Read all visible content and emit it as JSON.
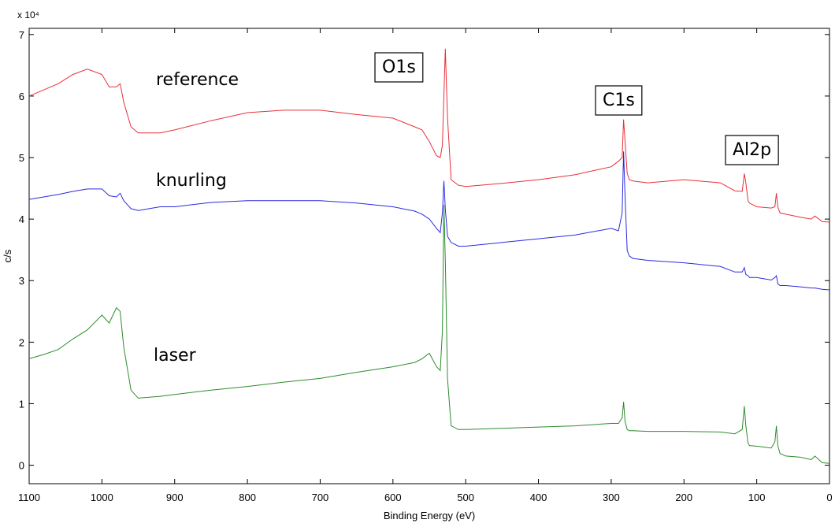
{
  "chart_data": {
    "type": "line",
    "x_label": "Binding Energy (eV)",
    "y_label": "c/s",
    "y_multiplier": "x 10⁴",
    "annotations": [
      "O1s",
      "C1s",
      "Al2p"
    ],
    "xlim": [
      1100,
      0
    ],
    "xticks": [
      1100,
      1000,
      900,
      800,
      700,
      600,
      500,
      400,
      300,
      200,
      100,
      0
    ],
    "ylim": [
      -0.3,
      7.1
    ],
    "yticks": [
      0,
      1,
      2,
      3,
      4,
      5,
      6,
      7
    ],
    "grid": false,
    "x": [
      1100,
      1080,
      1060,
      1040,
      1020,
      1000,
      990,
      980,
      975,
      970,
      960,
      950,
      920,
      900,
      850,
      800,
      750,
      700,
      650,
      600,
      570,
      560,
      550,
      540,
      535,
      532,
      530,
      528,
      525,
      520,
      510,
      500,
      450,
      400,
      350,
      300,
      290,
      285,
      283,
      281,
      278,
      275,
      270,
      250,
      200,
      150,
      130,
      120,
      117,
      115,
      112,
      110,
      100,
      80,
      75,
      73,
      71,
      68,
      60,
      40,
      25,
      20,
      10,
      0
    ],
    "series": [
      {
        "name": "reference",
        "color": "#e8303a",
        "values": [
          6.0,
          6.1,
          6.2,
          6.35,
          6.44,
          6.35,
          6.15,
          6.15,
          6.2,
          5.9,
          5.5,
          5.4,
          5.4,
          5.45,
          5.6,
          5.73,
          5.77,
          5.77,
          5.7,
          5.64,
          5.5,
          5.45,
          5.26,
          5.03,
          5.0,
          5.2,
          6.0,
          6.77,
          5.65,
          4.64,
          4.55,
          4.53,
          4.58,
          4.64,
          4.72,
          4.85,
          4.94,
          5.0,
          5.62,
          5.26,
          4.74,
          4.64,
          4.62,
          4.59,
          4.64,
          4.59,
          4.46,
          4.45,
          4.74,
          4.59,
          4.3,
          4.26,
          4.2,
          4.18,
          4.2,
          4.42,
          4.2,
          4.1,
          4.08,
          4.03,
          4.0,
          4.05,
          3.96,
          3.95
        ]
      },
      {
        "name": "knurling",
        "color": "#2a2ae0",
        "values": [
          4.32,
          4.36,
          4.4,
          4.45,
          4.49,
          4.49,
          4.38,
          4.36,
          4.42,
          4.3,
          4.17,
          4.14,
          4.2,
          4.2,
          4.27,
          4.3,
          4.3,
          4.3,
          4.26,
          4.2,
          4.13,
          4.08,
          4.0,
          3.85,
          3.78,
          4.1,
          4.62,
          4.17,
          3.72,
          3.62,
          3.56,
          3.56,
          3.62,
          3.68,
          3.74,
          3.85,
          3.81,
          4.1,
          5.1,
          4.36,
          3.49,
          3.4,
          3.36,
          3.33,
          3.29,
          3.23,
          3.14,
          3.14,
          3.21,
          3.1,
          3.08,
          3.05,
          3.05,
          3.01,
          3.05,
          3.08,
          2.95,
          2.92,
          2.92,
          2.9,
          2.88,
          2.88,
          2.86,
          2.85
        ]
      },
      {
        "name": "laser",
        "color": "#2e8b2e",
        "values": [
          1.73,
          1.8,
          1.88,
          2.05,
          2.2,
          2.44,
          2.31,
          2.56,
          2.5,
          1.92,
          1.22,
          1.09,
          1.12,
          1.15,
          1.22,
          1.28,
          1.35,
          1.41,
          1.51,
          1.6,
          1.67,
          1.73,
          1.82,
          1.6,
          1.54,
          2.18,
          4.23,
          3.33,
          1.41,
          0.64,
          0.58,
          0.58,
          0.6,
          0.62,
          0.64,
          0.68,
          0.68,
          0.77,
          1.03,
          0.71,
          0.58,
          0.56,
          0.56,
          0.55,
          0.55,
          0.54,
          0.51,
          0.58,
          0.96,
          0.64,
          0.36,
          0.32,
          0.31,
          0.28,
          0.38,
          0.64,
          0.32,
          0.19,
          0.15,
          0.13,
          0.09,
          0.15,
          0.04,
          0.03
        ]
      }
    ]
  }
}
